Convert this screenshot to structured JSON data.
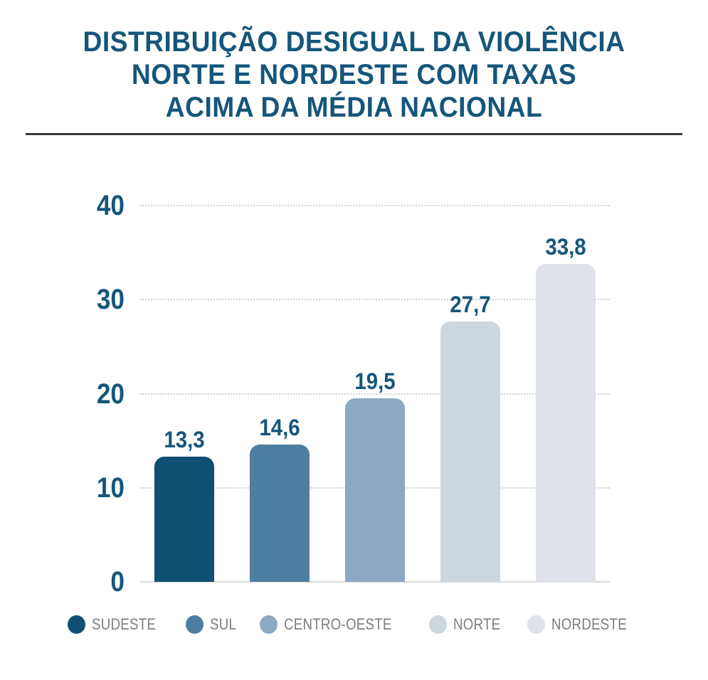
{
  "title": {
    "line1": "DISTRIBUIÇÃO DESIGUAL DA VIOLÊNCIA",
    "line2": "NORTE E NORDESTE COM TAXAS",
    "line3": "ACIMA DA MÉDIA NACIONAL"
  },
  "colors": {
    "title_text": "#15567b",
    "axis_label_text": "#15567b",
    "value_label_text": "#15567b",
    "divider": "#3a3a3a",
    "gridline": "#d1d1d1",
    "baseline": "#d9d9d9",
    "legend_text": "#7d7d7d",
    "background": "#ffffff"
  },
  "chart_data": {
    "type": "bar",
    "title": "DISTRIBUIÇÃO DESIGUAL DA VIOLÊNCIA NORTE E NORDESTE COM TAXAS ACIMA DA MÉDIA NACIONAL",
    "categories": [
      "SUDESTE",
      "SUL",
      "CENTRO-OESTE",
      "NORTE",
      "NORDESTE"
    ],
    "values": [
      13.3,
      14.6,
      19.5,
      27.7,
      33.8
    ],
    "value_labels": [
      "13,3",
      "14,6",
      "19,5",
      "27,7",
      "33,8"
    ],
    "bar_colors": [
      "#0e4f72",
      "#4d7da0",
      "#8ca8c2",
      "#cdd7e0",
      "#dfe3e9"
    ],
    "xlabel": "",
    "ylabel": "",
    "ylim": [
      0,
      40
    ],
    "y_ticks": [
      0,
      10,
      20,
      30,
      40
    ],
    "y_tick_labels": [
      "0",
      "10",
      "20",
      "30",
      "40"
    ],
    "grid": "horizontal dotted gridlines",
    "legend_position": "bottom",
    "legend_marker": "circle"
  }
}
